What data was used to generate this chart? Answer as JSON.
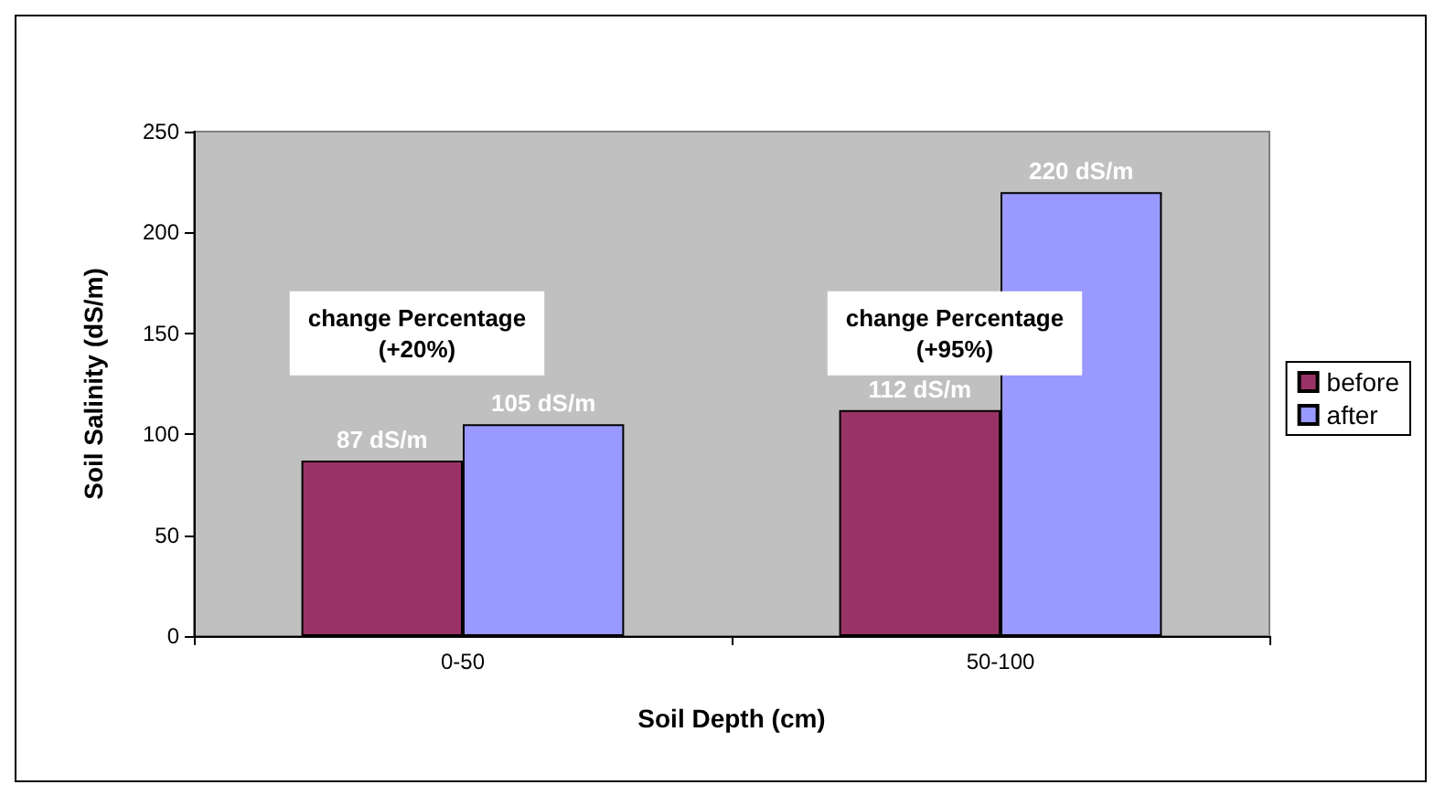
{
  "chart_data": {
    "type": "bar",
    "xlabel": "Soil Depth (cm)",
    "ylabel": "Soil Salinity (dS/m)",
    "categories": [
      "0-50",
      "50-100"
    ],
    "series": [
      {
        "name": "before",
        "color": "#993366",
        "values": [
          87,
          112
        ],
        "value_labels": [
          "87 dS/m",
          "112 dS/m"
        ]
      },
      {
        "name": "after",
        "color": "#9999ff",
        "values": [
          105,
          220
        ],
        "value_labels": [
          "105 dS/m",
          "220 dS/m"
        ]
      }
    ],
    "ylim": [
      0,
      250
    ],
    "yticks": [
      0,
      50,
      100,
      150,
      200,
      250
    ],
    "grid": false,
    "legend": "right",
    "annotations": [
      "change Percentage\n(+20%)",
      "change Percentage\n(+95%)"
    ]
  }
}
